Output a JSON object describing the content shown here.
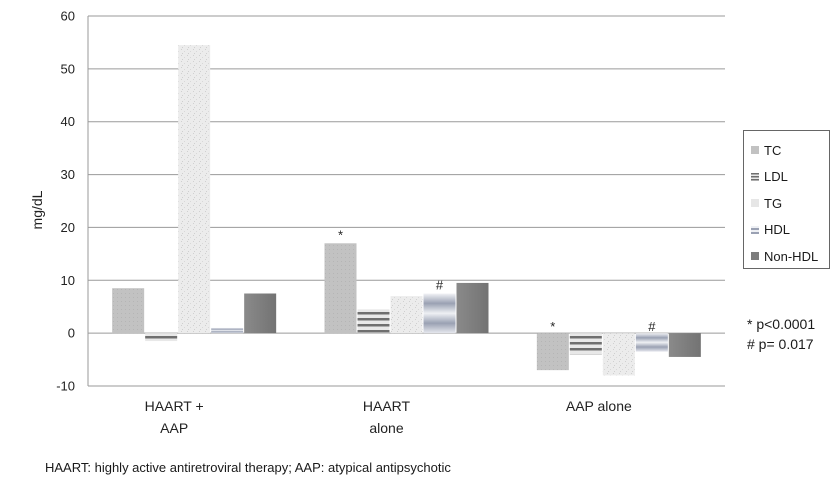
{
  "chart_data": {
    "type": "bar",
    "categories": [
      "HAART +\nAAP",
      "HAART\nalone",
      "AAP alone"
    ],
    "ylabel": "mg/dL",
    "ylim": [
      -10,
      60
    ],
    "yticks": [
      -10,
      0,
      10,
      20,
      30,
      40,
      50,
      60
    ],
    "grid": true,
    "legend_position": "right",
    "series": [
      {
        "name": "TC",
        "values": [
          8.5,
          17.0,
          -7.0
        ],
        "color": "#c4c4c4"
      },
      {
        "name": "LDL",
        "values": [
          -1.5,
          4.5,
          -4.0
        ],
        "color": "#8a8a8a"
      },
      {
        "name": "TG",
        "values": [
          54.5,
          7.0,
          -8.0
        ],
        "color": "#e9e9e9"
      },
      {
        "name": "HDL",
        "values": [
          1.0,
          7.5,
          -3.5
        ],
        "color": "#aab0bf"
      },
      {
        "name": "Non-HDL",
        "values": [
          7.5,
          9.5,
          -4.5
        ],
        "color": "#7d7d7d"
      }
    ],
    "annotations": [
      {
        "category": 1,
        "series": 0,
        "text": "*"
      },
      {
        "category": 1,
        "series": 3,
        "text": "#"
      },
      {
        "category": 2,
        "series": 0,
        "text": "*"
      },
      {
        "category": 2,
        "series": 3,
        "text": "#"
      }
    ]
  },
  "notes": {
    "star": "* p<0.0001",
    "hash": "# p= 0.017"
  },
  "footnote": "HAART: highly active antiretroviral therapy; AAP: atypical antipsychotic"
}
